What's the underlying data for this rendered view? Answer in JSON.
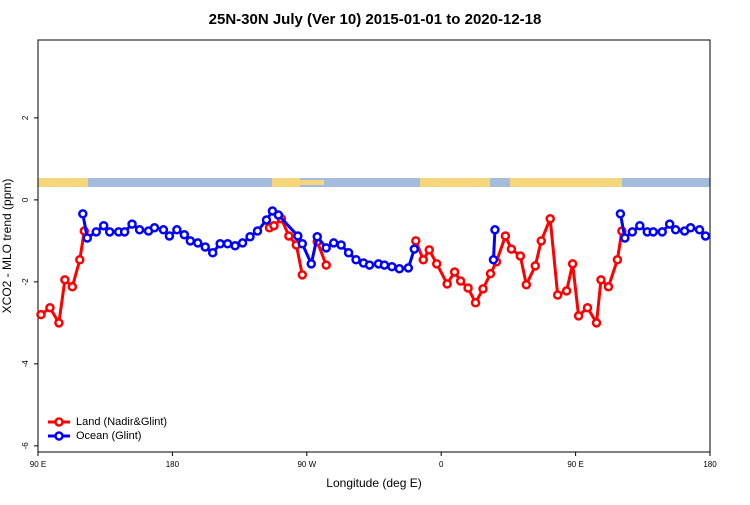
{
  "chart_data": {
    "type": "line",
    "title": "25N-30N July (Ver 10)   2015-01-01 to 2020-12-18",
    "x_label": "Longitude (deg E)",
    "y_label": "XCO2 - MLO trend (ppm)",
    "xlim": [
      90,
      540
    ],
    "ylim": [
      -6.15,
      3.9
    ],
    "xticks": [
      {
        "value": 90,
        "label": "90 E"
      },
      180,
      {
        "value": 270,
        "label": "90 W"
      },
      {
        "value": 360,
        "label": "0"
      },
      {
        "value": 450,
        "label": "90 E"
      },
      {
        "value": 540,
        "label": "180"
      }
    ],
    "yticks": [
      2,
      0,
      -2,
      -4,
      -6
    ],
    "legend": "bottom-left",
    "series": [
      {
        "name": "Land (Nadir&Glint)",
        "color": "#ff0000",
        "x": [
          92,
          98,
          104,
          108,
          113,
          118,
          121,
          null,
          245,
          248,
          253,
          258,
          263,
          267,
          null,
          277,
          283,
          null,
          343,
          348,
          352,
          357,
          364,
          369,
          373,
          378,
          383,
          388,
          393,
          397,
          403,
          407,
          413,
          417,
          423,
          427,
          433,
          438,
          444,
          448,
          452,
          458,
          464,
          467,
          472,
          478,
          481
        ],
        "values": [
          -2.8,
          -2.63,
          -3.0,
          -1.95,
          -2.12,
          -1.46,
          -0.76,
          null,
          -0.68,
          -0.63,
          -0.46,
          -0.88,
          -1.1,
          -1.83,
          null,
          -1.02,
          -1.59,
          null,
          -1.0,
          -1.46,
          -1.22,
          -1.56,
          -2.05,
          -1.76,
          -1.98,
          -2.15,
          -2.51,
          -2.17,
          -1.8,
          -1.51,
          -0.88,
          -1.2,
          -1.37,
          -2.07,
          -1.61,
          -1.0,
          -0.46,
          -2.32,
          -2.22,
          -1.56,
          -2.83,
          -2.63,
          -3.0,
          -1.95,
          -2.12,
          -1.46,
          -0.76
        ]
      },
      {
        "name": "Ocean (Glint)",
        "color": "#0000ff",
        "x": [
          120,
          123,
          129,
          134,
          138,
          144,
          148,
          153,
          158,
          164,
          168,
          174,
          178,
          183,
          188,
          192,
          197,
          202,
          207,
          212,
          217,
          222,
          227,
          232,
          237,
          243,
          247,
          251,
          264,
          267,
          273,
          277,
          283,
          288,
          293,
          298,
          303,
          308,
          312,
          318,
          322,
          327,
          332,
          338,
          342,
          null,
          395,
          396,
          null,
          480,
          483,
          488,
          493,
          498,
          502,
          508,
          513,
          517,
          523,
          527,
          533,
          537
        ],
        "values": [
          -0.34,
          -0.93,
          -0.78,
          -0.63,
          -0.78,
          -0.78,
          -0.78,
          -0.59,
          -0.73,
          -0.76,
          -0.68,
          -0.73,
          -0.88,
          -0.73,
          -0.85,
          -1.0,
          -1.05,
          -1.15,
          -1.29,
          -1.07,
          -1.07,
          -1.12,
          -1.05,
          -0.9,
          -0.76,
          -0.49,
          -0.27,
          -0.37,
          -0.88,
          -1.07,
          -1.56,
          -0.9,
          -1.17,
          -1.05,
          -1.1,
          -1.29,
          -1.46,
          -1.54,
          -1.59,
          -1.56,
          -1.59,
          -1.63,
          -1.68,
          -1.66,
          -1.2,
          null,
          -1.46,
          -0.73,
          null,
          -0.34,
          -0.93,
          -0.78,
          -0.63,
          -0.78,
          -0.78,
          -0.78,
          -0.59,
          -0.73,
          -0.76,
          -0.68,
          -0.73,
          -0.88
        ]
      }
    ]
  }
}
